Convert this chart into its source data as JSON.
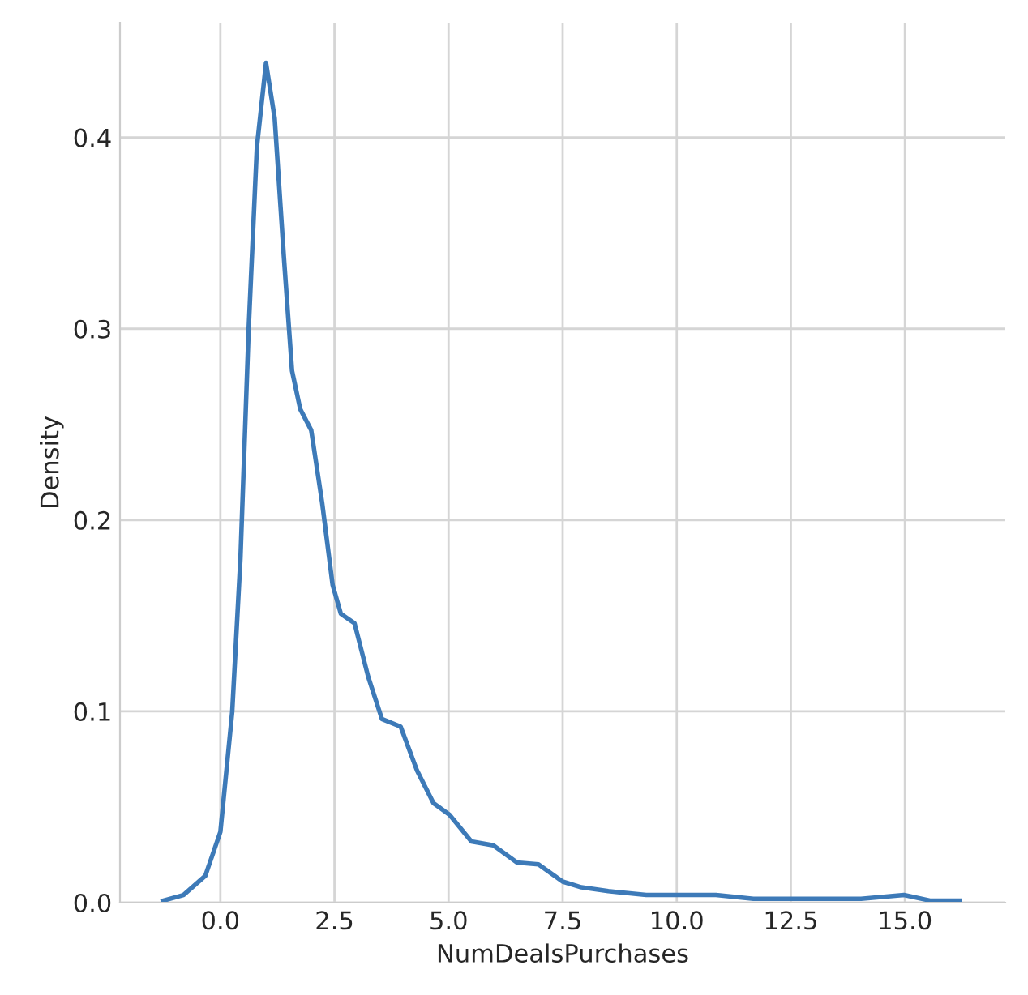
{
  "chart_data": {
    "type": "line",
    "xlabel": "NumDealsPurchases",
    "ylabel": "Density",
    "x": [
      -1.26,
      -0.81,
      -0.33,
      0,
      0.26,
      0.44,
      0.62,
      0.8,
      1.0,
      1.19,
      1.39,
      1.57,
      1.75,
      1.99,
      2.23,
      2.46,
      2.64,
      2.94,
      3.24,
      3.54,
      3.95,
      4.31,
      4.67,
      5.02,
      5.5,
      5.98,
      6.5,
      6.97,
      7.5,
      7.91,
      8.5,
      9.33,
      10.86,
      11.68,
      14.04,
      14.98,
      15.57,
      16.2
    ],
    "series": [
      {
        "color": "#3d7ab8",
        "values": [
          0.001,
          0.004,
          0.014,
          0.037,
          0.1,
          0.18,
          0.3,
          0.395,
          0.439,
          0.41,
          0.338,
          0.278,
          0.258,
          0.247,
          0.209,
          0.166,
          0.151,
          0.146,
          0.118,
          0.096,
          0.092,
          0.069,
          0.052,
          0.046,
          0.032,
          0.03,
          0.021,
          0.02,
          0.011,
          0.008,
          0.006,
          0.004,
          0.004,
          0.002,
          0.002,
          0.004,
          0.001,
          0.001
        ]
      }
    ],
    "xlim": [
      -2.2,
      17.2
    ],
    "ylim": [
      0,
      0.46
    ],
    "xticks": [
      {
        "value": 0,
        "label": "0.0"
      },
      2.5,
      {
        "value": 5,
        "label": "5.0"
      },
      7.5,
      {
        "value": 10,
        "label": "10.0"
      },
      12.5,
      {
        "value": 15,
        "label": "15.0"
      }
    ],
    "yticks": [
      {
        "value": 0,
        "label": "0.0"
      },
      0.1,
      0.2,
      0.3,
      0.4
    ],
    "grid": true,
    "legend": false,
    "marker": "none",
    "line_style": "solid"
  }
}
